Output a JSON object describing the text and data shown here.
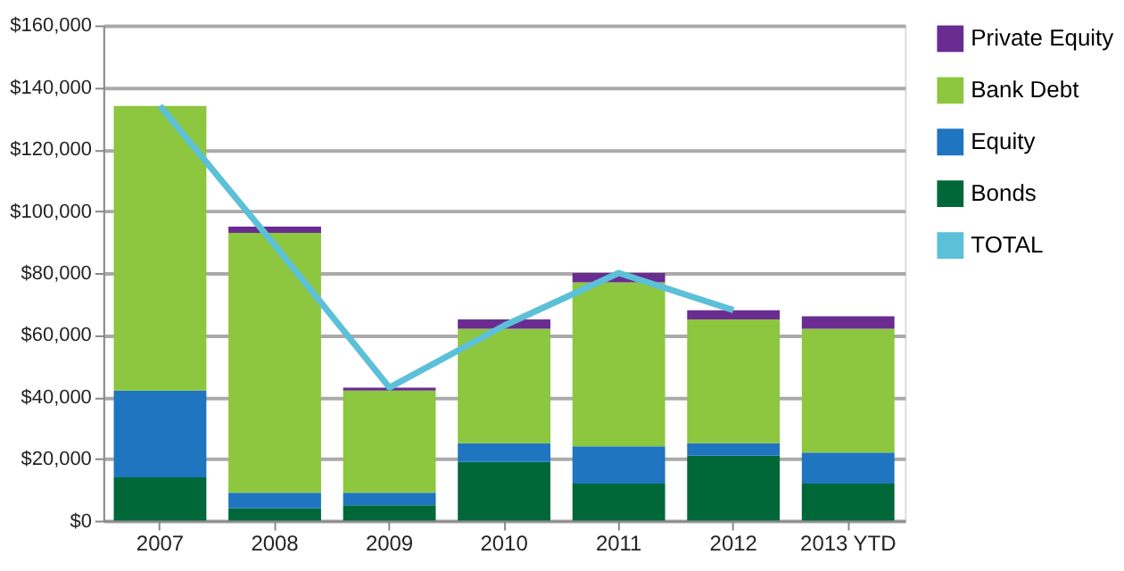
{
  "chart_data": {
    "type": "bar",
    "stacked": true,
    "categories": [
      "2007",
      "2008",
      "2009",
      "2010",
      "2011",
      "2012",
      "2013 YTD"
    ],
    "series": [
      {
        "name": "Bonds",
        "color": "#006838",
        "values": [
          14000,
          4000,
          5000,
          19000,
          12000,
          21000,
          12000
        ]
      },
      {
        "name": "Equity",
        "color": "#1f75c0",
        "values": [
          28000,
          5000,
          4000,
          6000,
          12000,
          4000,
          10000
        ]
      },
      {
        "name": "Bank Debt",
        "color": "#8dc63f",
        "values": [
          92000,
          84000,
          33000,
          37000,
          53000,
          40000,
          40000
        ]
      },
      {
        "name": "Private Equity",
        "color": "#6a2c91",
        "values": [
          0,
          2000,
          1000,
          3000,
          3000,
          3000,
          4000
        ]
      },
      {
        "name": "TOTAL",
        "type": "line",
        "color": "#5bc0d8",
        "values": [
          134000,
          89000,
          43000,
          63000,
          80000,
          68000,
          null
        ]
      }
    ],
    "ylim": [
      0,
      160000
    ],
    "yticks": [
      {
        "value": 0,
        "label": "$0"
      },
      {
        "value": 20000,
        "label": "$20,000"
      },
      {
        "value": 40000,
        "label": "$40,000"
      },
      {
        "value": 60000,
        "label": "$60,000"
      },
      {
        "value": 80000,
        "label": "$80,000"
      },
      {
        "value": 100000,
        "label": "$100,000"
      },
      {
        "value": 120000,
        "label": "$120,000"
      },
      {
        "value": 140000,
        "label": "$140,000"
      },
      {
        "value": 160000,
        "label": "$160,000"
      }
    ],
    "grid": "y",
    "legend": "right",
    "marker": "none"
  }
}
